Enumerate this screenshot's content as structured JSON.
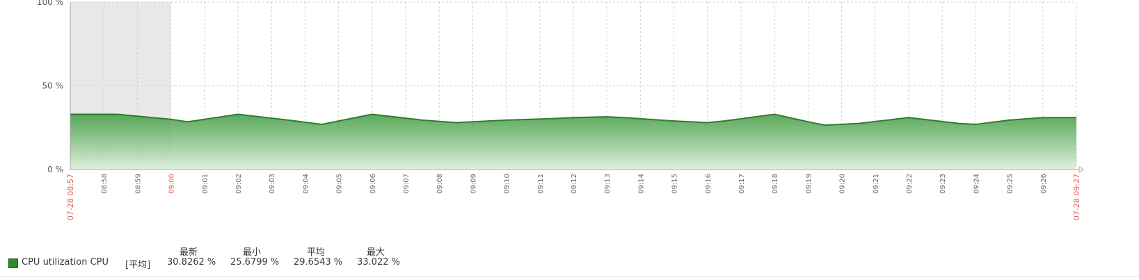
{
  "chart_data": {
    "type": "area",
    "y_ticks": [
      "100 %",
      "50 %",
      "0 %"
    ],
    "y_tick_values": [
      100,
      50,
      0
    ],
    "ylim": [
      0,
      100
    ],
    "grid": true,
    "x_start_label": "07-28 08:57",
    "x_end_label": "07-28 09:27",
    "x_tick_labels": [
      "08:58",
      "08:59",
      "09:00",
      "09:01",
      "09:02",
      "09:03",
      "09:04",
      "09:05",
      "09:06",
      "09:07",
      "09:08",
      "09:09",
      "09:10",
      "09:11",
      "09:12",
      "09:13",
      "09:14",
      "09:15",
      "09:16",
      "09:17",
      "09:18",
      "09:19",
      "09:20",
      "09:21",
      "09:22",
      "09:23",
      "09:24",
      "09:25",
      "09:26"
    ],
    "highlight_tick": "09:00",
    "no_data_range": [
      "08:57",
      "09:00"
    ],
    "x_minutes_range": [
      0,
      30
    ],
    "series": [
      {
        "name": "CPU utilization CPU",
        "color": "#2e8b2e",
        "x": [
          0,
          1.4,
          3,
          3.5,
          5,
          6.5,
          7.5,
          9,
          10.5,
          11.5,
          13,
          14.5,
          15,
          16,
          16.5,
          18,
          19,
          19.5,
          21,
          22,
          22.5,
          23.5,
          25,
          26.5,
          27,
          28,
          29,
          30
        ],
        "values": [
          33.0,
          33.0,
          30.0,
          28.5,
          33.0,
          29.5,
          27.0,
          33.0,
          29.5,
          28.0,
          29.5,
          30.5,
          31.0,
          31.5,
          31.0,
          29.0,
          28.0,
          29.0,
          33.0,
          28.5,
          26.5,
          27.5,
          31.0,
          27.5,
          27.0,
          29.5,
          31.0,
          31.0
        ]
      }
    ]
  },
  "legend": {
    "headers": {
      "latest": "最新",
      "min": "最小",
      "avg": "平均",
      "max": "最大"
    },
    "items": [
      {
        "color": "#2e8b2e",
        "name": "CPU utilization CPU",
        "func": "[平均]",
        "latest": "30.8262 %",
        "min": "25.6799 %",
        "avg": "29.6543 %",
        "max": "33.022 %"
      }
    ]
  },
  "colors": {
    "grid": "#cfcfcf",
    "axis": "#a8a8a8",
    "red_label": "#e05a5a",
    "nodata": "#e8e8e8",
    "line": "#2e7d2e"
  }
}
